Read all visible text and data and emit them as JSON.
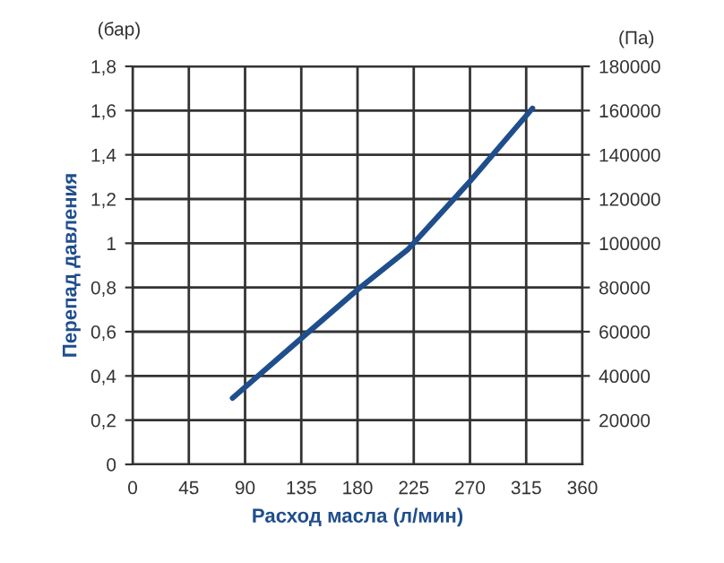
{
  "chart_data": {
    "type": "line",
    "xlabel": "Расход масла (л/мин)",
    "ylabel": "Перепад давления",
    "y2label": "(Па)",
    "annotations": [
      "(бар)"
    ],
    "x": [
      80,
      135,
      180,
      220,
      270,
      320
    ],
    "series": [
      {
        "color": "#1f4e8c",
        "values": [
          0.3,
          0.57,
          0.79,
          0.97,
          1.28,
          1.61
        ]
      }
    ],
    "xlim": [
      0,
      360
    ],
    "xticks": [
      0,
      45,
      90,
      135,
      180,
      225,
      270,
      315,
      360
    ],
    "ylim": [
      0,
      1.8
    ],
    "yticks": [
      {
        "value": 0,
        "label": "0"
      },
      {
        "value": 0.2,
        "label": "0,2"
      },
      {
        "value": 0.4,
        "label": "0,4"
      },
      {
        "value": 0.6,
        "label": "0,6"
      },
      {
        "value": 0.8,
        "label": "0,8"
      },
      {
        "value": 1,
        "label": "1"
      },
      {
        "value": 1.2,
        "label": "1,2"
      },
      {
        "value": 1.4,
        "label": "1,4"
      },
      {
        "value": 1.6,
        "label": "1,6"
      },
      {
        "value": 1.8,
        "label": "1,8"
      }
    ],
    "y2lim": [
      0,
      180000
    ],
    "y2ticks": [
      20000,
      40000,
      60000,
      80000,
      100000,
      120000,
      140000,
      160000,
      180000
    ],
    "grid": true,
    "legend": false
  }
}
